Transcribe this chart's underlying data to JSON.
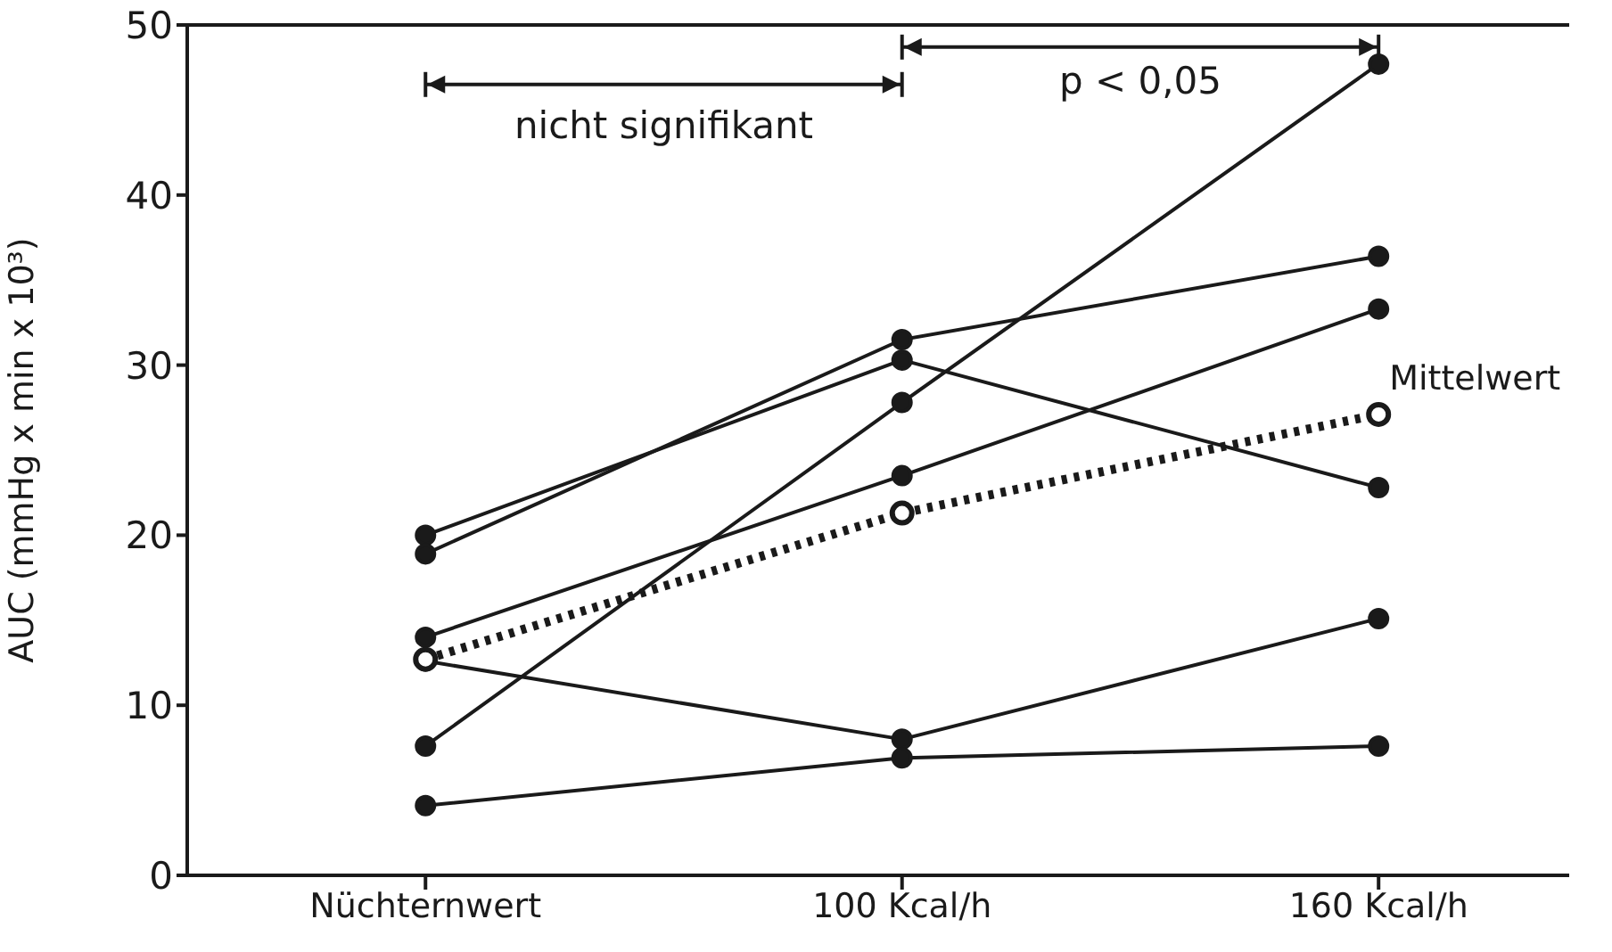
{
  "chart_data": {
    "type": "line",
    "ylabel": "AUC (mmHg x min x 10³)",
    "categories": [
      "Nüchternwert",
      "100 Kcal/h",
      "160 Kcal/h"
    ],
    "ylim": [
      0,
      50
    ],
    "yticks": [
      0,
      10,
      20,
      30,
      40,
      50
    ],
    "marker": "circle",
    "line_style": "solid",
    "annotations": [
      "nicht signifikant",
      "p < 0,05"
    ],
    "series": [
      {
        "color": "#1a1a1a",
        "values": [
          20,
          30.3,
          22.8
        ]
      },
      {
        "color": "#1a1a1a",
        "values": [
          18.9,
          31.5,
          36.4
        ]
      },
      {
        "color": "#1a1a1a",
        "values": [
          14,
          23.5,
          33.3
        ]
      },
      {
        "color": "#1a1a1a",
        "values": [
          12.6,
          8,
          15.1
        ]
      },
      {
        "color": "#1a1a1a",
        "values": [
          7.6,
          27.8,
          47.7
        ]
      },
      {
        "color": "#1a1a1a",
        "values": [
          4.1,
          6.9,
          7.6
        ]
      },
      {
        "name": "Mittelwert",
        "color": "#1a1a1a",
        "values": [
          12.7,
          21.3,
          27.1
        ],
        "line_style": "dotted",
        "marker": "open-circle"
      }
    ]
  }
}
